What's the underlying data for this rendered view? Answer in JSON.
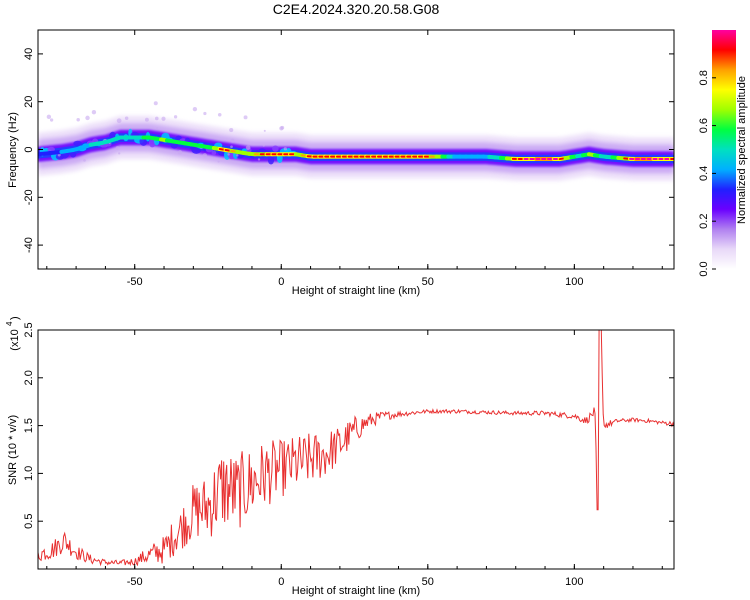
{
  "title": "C2E4.2024.320.20.58.G08",
  "chart_data": [
    {
      "type": "heatmap",
      "name": "spectrogram",
      "xlabel": "Height of straight line (km)",
      "ylabel": "Frequency (Hz)",
      "xlim": [
        -83,
        134
      ],
      "ylim": [
        -50,
        50
      ],
      "x_ticks": [
        -50,
        0,
        50,
        100
      ],
      "x_tick_labels": [
        "-50",
        "0",
        "50",
        "100"
      ],
      "y_ticks": [
        -40,
        -20,
        0,
        20,
        40
      ],
      "y_tick_labels": [
        "-40",
        "-20",
        "0",
        "20",
        "40"
      ],
      "colorbar": {
        "label": "Normalized spectral amplitude",
        "range": [
          0,
          1
        ],
        "ticks": [
          0.0,
          0.2,
          0.4,
          0.6,
          0.8
        ],
        "tick_labels": [
          "0.0",
          "0.2",
          "0.4",
          "0.6",
          "0.8"
        ],
        "colors": [
          "#ffffff",
          "#e8d8f8",
          "#b080f0",
          "#6a00ff",
          "#2020ff",
          "#00b0ff",
          "#00e0c0",
          "#00ff40",
          "#a0ff00",
          "#ffff00",
          "#ffa000",
          "#ff0000",
          "#ff00a0"
        ]
      },
      "ridge": {
        "x": [
          -83,
          -75,
          -70,
          -65,
          -60,
          -55,
          -50,
          -45,
          -40,
          -35,
          -30,
          -25,
          -20,
          -15,
          -10,
          -5,
          0,
          5,
          10,
          20,
          30,
          40,
          50,
          60,
          70,
          80,
          90,
          95,
          100,
          105,
          110,
          120,
          134
        ],
        "y": [
          -2,
          -1,
          0,
          2,
          3,
          5,
          5,
          5,
          4,
          3,
          2,
          1,
          0,
          -1,
          -2,
          -2,
          -2,
          -2,
          -3,
          -3,
          -3,
          -3,
          -3,
          -3,
          -3,
          -4,
          -4,
          -4,
          -3,
          -2,
          -3,
          -4,
          -4
        ],
        "intensity": [
          0.35,
          0.45,
          0.5,
          0.55,
          0.55,
          0.6,
          0.6,
          0.7,
          0.75,
          0.65,
          0.65,
          0.7,
          0.9,
          0.75,
          0.8,
          0.85,
          0.9,
          0.8,
          0.85,
          0.9,
          0.9,
          0.9,
          0.85,
          0.5,
          0.5,
          0.9,
          0.95,
          0.9,
          0.6,
          0.75,
          0.55,
          0.95,
          0.9
        ]
      }
    },
    {
      "type": "line",
      "name": "snr",
      "xlabel": "Height of straight line (km)",
      "ylabel": "SNR (10 * v/v)",
      "scale_label": "(x10",
      "scale_exponent": "4",
      "xlim": [
        -83,
        134
      ],
      "ylim": [
        0,
        2.5
      ],
      "x_ticks": [
        -50,
        0,
        50,
        100
      ],
      "x_tick_labels": [
        "-50",
        "0",
        "50",
        "100"
      ],
      "y_ticks": [
        0.5,
        1.0,
        1.5,
        2.0,
        2.5
      ],
      "y_tick_labels": [
        "0.5",
        "1.0",
        "1.5",
        "2.0",
        "2.5"
      ],
      "color": "#e83030",
      "series": [
        {
          "x": [
            -83,
            -78,
            -74,
            -70,
            -65,
            -60,
            -55,
            -50,
            -45,
            -40,
            -35,
            -30,
            -25,
            -20,
            -15,
            -10,
            -5,
            0,
            5,
            10,
            15,
            20,
            25,
            30,
            35,
            40,
            50,
            60,
            70,
            80,
            90,
            100,
            104,
            107,
            108,
            109,
            110,
            115,
            120,
            125,
            130,
            134
          ],
          "y": [
            0.15,
            0.2,
            0.3,
            0.18,
            0.1,
            0.07,
            0.06,
            0.08,
            0.15,
            0.2,
            0.4,
            0.6,
            0.65,
            0.85,
            0.8,
            0.9,
            1.0,
            1.05,
            1.1,
            1.15,
            1.2,
            1.3,
            1.45,
            1.55,
            1.6,
            1.62,
            1.65,
            1.65,
            1.64,
            1.63,
            1.63,
            1.6,
            1.55,
            1.65,
            0.62,
            2.55,
            1.5,
            1.55,
            1.56,
            1.55,
            1.53,
            1.52
          ],
          "noise": [
            0.08,
            0.1,
            0.12,
            0.08,
            0.05,
            0.03,
            0.03,
            0.04,
            0.1,
            0.15,
            0.22,
            0.3,
            0.35,
            0.45,
            0.4,
            0.4,
            0.35,
            0.3,
            0.3,
            0.28,
            0.25,
            0.2,
            0.15,
            0.08,
            0.05,
            0.03,
            0.02,
            0.02,
            0.02,
            0.02,
            0.025,
            0.03,
            0.04,
            0.05,
            0,
            0,
            0.05,
            0.02,
            0.02,
            0.02,
            0.02,
            0.03
          ]
        }
      ]
    }
  ]
}
